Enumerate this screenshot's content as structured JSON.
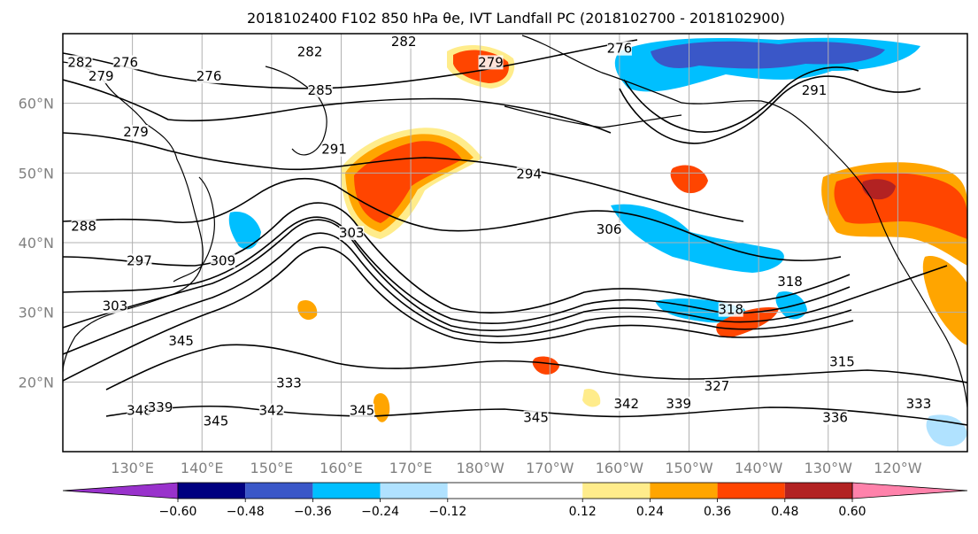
{
  "title": "2018102400 F102 850 hPa θe, IVT Landfall PC (2018102700 - 2018102900)",
  "map": {
    "lon_range": [
      120,
      250
    ],
    "lat_range": [
      10,
      70
    ],
    "lon_ticks": [
      {
        "lon": 130,
        "label": "130°E"
      },
      {
        "lon": 140,
        "label": "140°E"
      },
      {
        "lon": 150,
        "label": "150°E"
      },
      {
        "lon": 160,
        "label": "160°E"
      },
      {
        "lon": 170,
        "label": "170°E"
      },
      {
        "lon": 180,
        "label": "180°W"
      },
      {
        "lon": 190,
        "label": "170°W"
      },
      {
        "lon": 200,
        "label": "160°W"
      },
      {
        "lon": 210,
        "label": "150°W"
      },
      {
        "lon": 220,
        "label": "140°W"
      },
      {
        "lon": 230,
        "label": "130°W"
      },
      {
        "lon": 240,
        "label": "120°W"
      }
    ],
    "lat_ticks": [
      {
        "lat": 20,
        "label": "20°N"
      },
      {
        "lat": 30,
        "label": "30°N"
      },
      {
        "lat": 40,
        "label": "40°N"
      },
      {
        "lat": 50,
        "label": "50°N"
      },
      {
        "lat": 60,
        "label": "60°N"
      }
    ],
    "grid": true
  },
  "contour_labels": [
    {
      "text": "282",
      "lon": 122.5,
      "lat": 65.5
    },
    {
      "text": "279",
      "lon": 125.5,
      "lat": 63.5
    },
    {
      "text": "276",
      "lon": 129,
      "lat": 65.5
    },
    {
      "text": "276",
      "lon": 141,
      "lat": 63.5
    },
    {
      "text": "282",
      "lon": 155.5,
      "lat": 67
    },
    {
      "text": "282",
      "lon": 169,
      "lat": 68.5
    },
    {
      "text": "285",
      "lon": 157,
      "lat": 61.5
    },
    {
      "text": "279",
      "lon": 181.5,
      "lat": 65.5
    },
    {
      "text": "276",
      "lon": 200,
      "lat": 67.5
    },
    {
      "text": "291",
      "lon": 228,
      "lat": 61.5
    },
    {
      "text": "279",
      "lon": 130.5,
      "lat": 55.5
    },
    {
      "text": "291",
      "lon": 159,
      "lat": 53
    },
    {
      "text": "294",
      "lon": 187,
      "lat": 49.5
    },
    {
      "text": "288",
      "lon": 123,
      "lat": 42
    },
    {
      "text": "303",
      "lon": 161.5,
      "lat": 41
    },
    {
      "text": "306",
      "lon": 198.5,
      "lat": 41.5
    },
    {
      "text": "297",
      "lon": 131,
      "lat": 37
    },
    {
      "text": "309",
      "lon": 143,
      "lat": 37
    },
    {
      "text": "318",
      "lon": 224.5,
      "lat": 34
    },
    {
      "text": "303",
      "lon": 127.5,
      "lat": 30.5
    },
    {
      "text": "318",
      "lon": 216,
      "lat": 30
    },
    {
      "text": "345",
      "lon": 137,
      "lat": 25.5
    },
    {
      "text": "315",
      "lon": 232,
      "lat": 22.5
    },
    {
      "text": "333",
      "lon": 152.5,
      "lat": 19.5
    },
    {
      "text": "327",
      "lon": 214,
      "lat": 19
    },
    {
      "text": "348",
      "lon": 131,
      "lat": 15.5
    },
    {
      "text": "339",
      "lon": 134,
      "lat": 16
    },
    {
      "text": "342",
      "lon": 150,
      "lat": 15.5
    },
    {
      "text": "345",
      "lon": 163,
      "lat": 15.5
    },
    {
      "text": "345",
      "lon": 142,
      "lat": 14
    },
    {
      "text": "345",
      "lon": 188,
      "lat": 14.5
    },
    {
      "text": "342",
      "lon": 201,
      "lat": 16.5
    },
    {
      "text": "339",
      "lon": 208.5,
      "lat": 16.5
    },
    {
      "text": "336",
      "lon": 231,
      "lat": 14.5
    },
    {
      "text": "333",
      "lon": 243,
      "lat": 16.5
    }
  ],
  "colorbar": {
    "bounds": [
      -0.72,
      -0.6,
      -0.48,
      -0.36,
      -0.24,
      -0.12,
      0.12,
      0.24,
      0.36,
      0.48,
      0.6,
      0.72
    ],
    "colors": [
      "#9932cc",
      "#000080",
      "#3a57c8",
      "#00bfff",
      "#b0e2ff",
      "#ffffff",
      "#ffec8b",
      "#ffa500",
      "#ff4500",
      "#b22222",
      "#ff82ab"
    ],
    "tick_values": [
      -0.6,
      -0.48,
      -0.36,
      -0.24,
      -0.12,
      0.12,
      0.24,
      0.36,
      0.48,
      0.6
    ],
    "tick_labels": [
      "−0.60",
      "−0.48",
      "−0.36",
      "−0.24",
      "−0.12",
      "0.12",
      "0.24",
      "0.36",
      "0.48",
      "0.60"
    ],
    "extend": "both"
  },
  "colors": {
    "axis": "#000000",
    "grid": "#b0b0b0",
    "contour": "#000000",
    "coast": "#000000",
    "tick_label": "#808080"
  }
}
